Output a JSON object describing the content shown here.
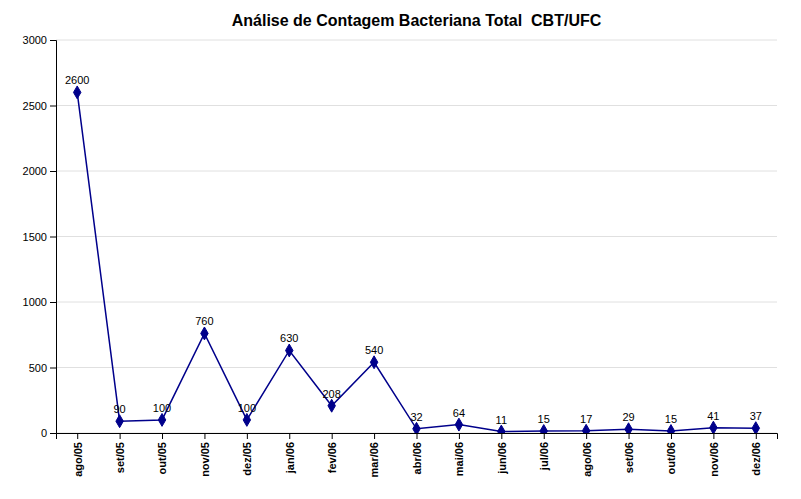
{
  "chart_data": {
    "type": "line",
    "title": "Análise de Contagem Bacteriana Total  CBT/UFC",
    "categories": [
      "ago/05",
      "set/05",
      "out/05",
      "nov/05",
      "dez/05",
      "jan/06",
      "fev/06",
      "mar/06",
      "abr/06",
      "mai/06",
      "jun/06",
      "jul/06",
      "ago/06",
      "set/06",
      "out/06",
      "nov/06",
      "dez/06"
    ],
    "values": [
      2600,
      90,
      100,
      760,
      100,
      630,
      208,
      540,
      32,
      64,
      11,
      15,
      17,
      29,
      15,
      41,
      37
    ],
    "color": "#00008B",
    "marker": "diamond",
    "ylim": [
      0,
      3000
    ],
    "yticks": [
      0,
      500,
      1000,
      1500,
      2000,
      2500,
      3000
    ],
    "grid": true,
    "data_labels": true
  }
}
